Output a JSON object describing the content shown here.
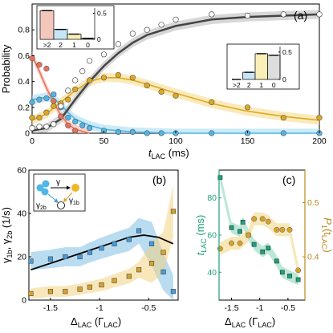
{
  "chart_data": [
    {
      "id": "a",
      "type": "scatter",
      "panel_label": "(a)",
      "xlabel_main": "t",
      "xlabel_sub": "LAC",
      "xlabel_unit": " (ms)",
      "ylabel": "Probability",
      "xlim": [
        0,
        200
      ],
      "ylim": [
        0,
        1
      ],
      "xticks": [
        "0",
        "50",
        "100",
        "150",
        "200"
      ],
      "yticks": [
        "0",
        "0.2",
        "0.4",
        "0.6",
        "0.8"
      ],
      "grid": false,
      "colors": {
        "gt2": "#e8715a",
        "two": "#4fb6e6",
        "one": "#e0a820",
        "zero": "#ffffff",
        "fit": "#444444"
      },
      "series": [
        {
          "key": "gt2",
          "x": [
            0,
            5,
            10,
            15,
            20,
            25,
            30
          ],
          "y": [
            0.58,
            0.53,
            0.5,
            0.25,
            0.13,
            0.06,
            0.02
          ]
        },
        {
          "key": "two",
          "x": [
            0,
            5,
            10,
            15,
            20,
            25,
            30,
            35,
            40,
            50,
            60,
            70,
            80,
            90,
            100,
            125,
            150,
            175,
            200
          ],
          "y": [
            0.24,
            0.26,
            0.27,
            0.3,
            0.2,
            0.12,
            0.09,
            0.06,
            0.04,
            0.02,
            0.01,
            0.01,
            0.0,
            0.0,
            0.0,
            0.0,
            0.0,
            0.0,
            0.0
          ]
        },
        {
          "key": "one",
          "x": [
            0,
            5,
            10,
            15,
            20,
            25,
            30,
            40,
            50,
            60,
            70,
            80,
            90,
            100,
            125,
            150,
            175,
            200
          ],
          "y": [
            0.12,
            0.12,
            0.16,
            0.21,
            0.23,
            0.26,
            0.34,
            0.41,
            0.43,
            0.45,
            0.43,
            0.37,
            0.32,
            0.29,
            0.24,
            0.2,
            0.12,
            0.12
          ]
        },
        {
          "key": "zero",
          "x": [
            0,
            5,
            10,
            15,
            20,
            25,
            30,
            35,
            40,
            50,
            60,
            70,
            80,
            90,
            100,
            125,
            150,
            175,
            200
          ],
          "y": [
            0.04,
            0.05,
            0.05,
            0.07,
            0.21,
            0.33,
            0.41,
            0.48,
            0.56,
            0.61,
            0.69,
            0.77,
            0.8,
            0.84,
            0.88,
            0.92,
            0.91,
            0.92,
            0.92
          ]
        }
      ],
      "fits": [
        {
          "key": "gt2",
          "x": [
            0,
            5,
            10,
            15,
            20,
            25,
            30,
            40
          ],
          "y": [
            0.6,
            0.48,
            0.35,
            0.24,
            0.14,
            0.07,
            0.03,
            0.0
          ]
        },
        {
          "key": "two",
          "x": [
            0,
            5,
            10,
            15,
            20,
            25,
            30,
            40,
            50,
            70,
            100,
            150,
            200
          ],
          "y": [
            0.26,
            0.27,
            0.28,
            0.27,
            0.22,
            0.16,
            0.11,
            0.06,
            0.03,
            0.01,
            0.0,
            0.0,
            0.0
          ]
        },
        {
          "key": "one",
          "x": [
            0,
            10,
            20,
            30,
            40,
            50,
            60,
            70,
            80,
            100,
            125,
            150,
            175,
            200
          ],
          "y": [
            0.1,
            0.15,
            0.24,
            0.33,
            0.4,
            0.43,
            0.43,
            0.41,
            0.38,
            0.31,
            0.23,
            0.17,
            0.13,
            0.1
          ]
        },
        {
          "key": "zero",
          "x": [
            0,
            10,
            20,
            30,
            40,
            50,
            60,
            70,
            80,
            100,
            125,
            150,
            175,
            200
          ],
          "y": [
            0.02,
            0.04,
            0.11,
            0.26,
            0.4,
            0.52,
            0.62,
            0.7,
            0.76,
            0.83,
            0.88,
            0.9,
            0.91,
            0.92
          ]
        }
      ],
      "insets": [
        {
          "name": "t0",
          "categories": [
            ">2",
            "2",
            "1",
            "0"
          ],
          "values": [
            0.55,
            0.19,
            0.1,
            0.02
          ],
          "colors": [
            "#f4c7bc",
            "#c7e6f5",
            "#faeeb9",
            "#dddddd"
          ],
          "ylim": [
            0,
            0.6
          ],
          "yticks": [
            "0",
            "0.5"
          ]
        },
        {
          "name": "tend",
          "categories": [
            ">2",
            "2",
            "1",
            "0"
          ],
          "values": [
            0.0,
            0.13,
            0.47,
            0.44
          ],
          "colors": [
            "#f4c7bc",
            "#c7e6f5",
            "#faeeb9",
            "#dddddd"
          ],
          "ylim": [
            0,
            0.6
          ],
          "yticks": [
            "0",
            "0.5"
          ]
        }
      ]
    },
    {
      "id": "b",
      "type": "scatter",
      "panel_label": "(b)",
      "xlabel_main": "Δ",
      "xlabel_sub": "LAC",
      "xlabel_unit_pre": " (Γ",
      "xlabel_unit_sub": "LAC",
      "xlabel_unit_post": ")",
      "ylabel_a": "γ",
      "ylabel_a_sub": "1b",
      "ylabel_mid": ", γ",
      "ylabel_b_sub": "2b",
      "ylabel_unit": " (1/s)",
      "xlim": [
        -1.72,
        -0.2
      ],
      "ylim": [
        0,
        60
      ],
      "xticks": [
        "-1.5",
        "-1",
        "-0.5"
      ],
      "yticks": [
        "0",
        "20",
        "40",
        "60"
      ],
      "grid": false,
      "series": [
        {
          "name": "γ2b",
          "color": "#4a9bd6",
          "x": [
            -1.7,
            -1.5,
            -1.35,
            -1.2,
            -1.1,
            -0.98,
            -0.85,
            -0.7,
            -0.6,
            -0.47,
            -0.35,
            -0.25
          ],
          "y": [
            18,
            19,
            20,
            20,
            22,
            24,
            26,
            28,
            32,
            26,
            13,
            4
          ]
        },
        {
          "name": "γ1b",
          "color": "#d8a22a",
          "x": [
            -1.7,
            -1.5,
            -1.35,
            -1.2,
            -1.1,
            -0.98,
            -0.85,
            -0.7,
            -0.6,
            -0.47,
            -0.35,
            -0.25
          ],
          "y": [
            3,
            4,
            4,
            5,
            6,
            7,
            9,
            11,
            14,
            17,
            22,
            41
          ]
        }
      ],
      "theory": {
        "x": [
          -1.7,
          -1.5,
          -1.3,
          -1.1,
          -0.9,
          -0.7,
          -0.55,
          -0.4,
          -0.25
        ],
        "y": [
          14,
          17,
          20,
          23,
          26,
          29,
          30,
          29,
          26
        ]
      },
      "diagram": {
        "arrow1": "γ",
        "arrow2": "γ",
        "sub2": "2b",
        "arrow3": "γ",
        "sub3": "1b"
      }
    },
    {
      "id": "c",
      "type": "scatter",
      "panel_label": "(c)",
      "xlabel_main": "Δ",
      "xlabel_sub": "LAC",
      "xlabel_unit_pre": " (Γ",
      "xlabel_unit_sub": "LAC",
      "xlabel_unit_post": ")",
      "ylabel_left_main": "t",
      "ylabel_left_sub": "LAC",
      "ylabel_left_unit": " (ms)",
      "ylabel_right_main": "P",
      "ylabel_right_sub": "1",
      "ylabel_right_arg": "(t",
      "ylabel_right_arg_sub": "LAC",
      "ylabel_right_close": ")",
      "xlim": [
        -1.72,
        -0.2
      ],
      "ylim_left": [
        25,
        95
      ],
      "ylim_right": [
        0.32,
        0.56
      ],
      "xticks": [
        "-1.5",
        "-1",
        "-0.5"
      ],
      "yticks_left": [
        "40",
        "60",
        "80"
      ],
      "yticks_right": [
        "0.4",
        "0.5"
      ],
      "grid": false,
      "series": [
        {
          "name": "t*LAC",
          "axis": "left",
          "color": "#1fa07a",
          "x": [
            -1.7,
            -1.5,
            -1.35,
            -1.3,
            -1.2,
            -1.1,
            -0.95,
            -0.85,
            -0.7,
            -0.6,
            -0.47,
            -0.32
          ],
          "y": [
            91,
            64,
            62,
            67,
            60,
            55,
            51,
            53,
            46,
            40,
            38,
            36
          ]
        },
        {
          "name": "P1(t*LAC)",
          "axis": "right",
          "color": "#d8a22a",
          "x": [
            -1.7,
            -1.5,
            -1.35,
            -1.2,
            -1.1,
            -0.95,
            -0.85,
            -0.7,
            -0.6,
            -0.47,
            -0.32
          ],
          "y": [
            0.415,
            0.425,
            0.425,
            0.44,
            0.47,
            0.47,
            0.465,
            0.45,
            0.45,
            0.45,
            0.375
          ]
        }
      ]
    }
  ]
}
